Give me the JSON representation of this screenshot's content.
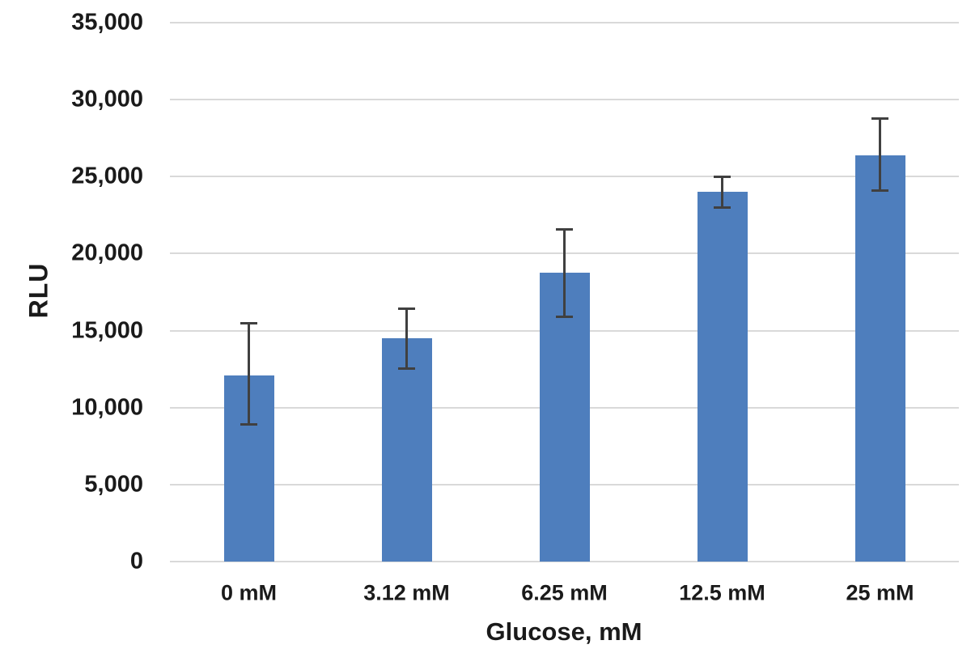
{
  "chart_data": {
    "type": "bar",
    "title": "",
    "xlabel": "Glucose, mM",
    "ylabel": "RLU",
    "categories": [
      "0 mM",
      "3.12 mM",
      "6.25 mM",
      "12.5 mM",
      "25 mM"
    ],
    "values": [
      12100,
      14500,
      18750,
      24000,
      26400
    ],
    "error_bars": {
      "upper": [
        15500,
        16450,
        21600,
        25000,
        28800
      ],
      "lower": [
        8950,
        12550,
        15900,
        23000,
        24100
      ]
    },
    "ylim": [
      0,
      35000
    ],
    "ytick_step": 5000,
    "ytick_labels": [
      "0",
      "5,000",
      "10,000",
      "15,000",
      "20,000",
      "25,000",
      "30,000",
      "35,000"
    ],
    "grid": true,
    "legend": false,
    "colors": {
      "bar": "#4e7ebd",
      "error_bar": "#404040",
      "gridline": "#d9d9d9",
      "text": "#1a1a1a",
      "background": "#ffffff"
    }
  }
}
